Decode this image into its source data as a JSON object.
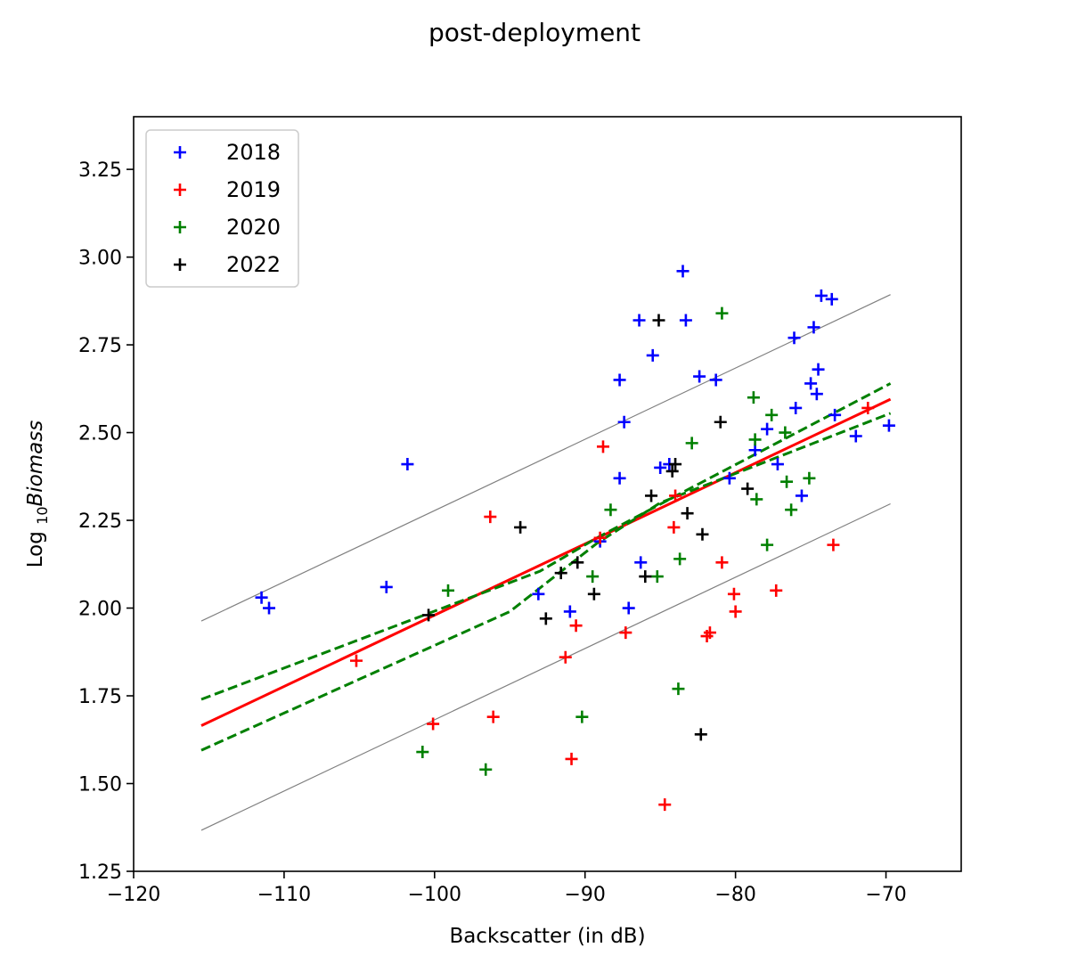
{
  "chart_data": {
    "type": "scatter",
    "title": "post-deployment",
    "xlabel": "Backscatter (in dB)",
    "ylabel": {
      "prefix": "Log ",
      "subscript": "10",
      "italic": "Biomass"
    },
    "xlim": [
      -120,
      -65
    ],
    "ylim": [
      1.25,
      3.4
    ],
    "xticks": [
      -120,
      -110,
      -100,
      -90,
      -80,
      -70
    ],
    "yticks": [
      1.25,
      1.5,
      1.75,
      2.0,
      2.25,
      2.5,
      2.75,
      3.0,
      3.25
    ],
    "grid": false,
    "legend_position": "top-left",
    "series": [
      {
        "name": "2018",
        "color": "#0000ff",
        "marker": "plus",
        "points": [
          [
            -111.5,
            2.03
          ],
          [
            -111.0,
            2.0
          ],
          [
            -103.2,
            2.06
          ],
          [
            -101.8,
            2.41
          ],
          [
            -93.1,
            2.04
          ],
          [
            -91.0,
            1.99
          ],
          [
            -89.0,
            2.19
          ],
          [
            -87.7,
            2.65
          ],
          [
            -87.7,
            2.37
          ],
          [
            -87.4,
            2.53
          ],
          [
            -87.1,
            2.0
          ],
          [
            -86.4,
            2.82
          ],
          [
            -86.3,
            2.13
          ],
          [
            -85.5,
            2.72
          ],
          [
            -85.0,
            2.4
          ],
          [
            -84.4,
            2.41
          ],
          [
            -83.5,
            2.96
          ],
          [
            -83.3,
            2.82
          ],
          [
            -82.4,
            2.66
          ],
          [
            -81.3,
            2.65
          ],
          [
            -80.4,
            2.37
          ],
          [
            -78.7,
            2.45
          ],
          [
            -77.9,
            2.51
          ],
          [
            -77.2,
            2.41
          ],
          [
            -76.1,
            2.77
          ],
          [
            -76.0,
            2.57
          ],
          [
            -75.6,
            2.32
          ],
          [
            -75.0,
            2.64
          ],
          [
            -74.8,
            2.8
          ],
          [
            -74.6,
            2.61
          ],
          [
            -74.5,
            2.68
          ],
          [
            -74.3,
            2.89
          ],
          [
            -73.6,
            2.88
          ],
          [
            -73.4,
            2.55
          ],
          [
            -72.0,
            2.49
          ],
          [
            -69.8,
            2.52
          ]
        ]
      },
      {
        "name": "2019",
        "color": "#ff0000",
        "marker": "plus",
        "points": [
          [
            -105.2,
            1.85
          ],
          [
            -100.1,
            1.67
          ],
          [
            -96.3,
            2.26
          ],
          [
            -96.1,
            1.69
          ],
          [
            -91.3,
            1.86
          ],
          [
            -90.9,
            1.57
          ],
          [
            -90.6,
            1.95
          ],
          [
            -89.0,
            2.2
          ],
          [
            -88.8,
            2.46
          ],
          [
            -87.3,
            1.93
          ],
          [
            -84.7,
            1.44
          ],
          [
            -84.1,
            2.23
          ],
          [
            -84.0,
            2.32
          ],
          [
            -81.9,
            1.92
          ],
          [
            -81.7,
            1.93
          ],
          [
            -80.9,
            2.13
          ],
          [
            -80.1,
            2.04
          ],
          [
            -80.0,
            1.99
          ],
          [
            -77.3,
            2.05
          ],
          [
            -73.5,
            2.18
          ],
          [
            -71.2,
            2.57
          ]
        ]
      },
      {
        "name": "2020",
        "color": "#008000",
        "marker": "plus",
        "points": [
          [
            -100.8,
            1.59
          ],
          [
            -99.1,
            2.05
          ],
          [
            -96.6,
            1.54
          ],
          [
            -90.2,
            1.69
          ],
          [
            -89.5,
            2.09
          ],
          [
            -88.3,
            2.28
          ],
          [
            -85.2,
            2.09
          ],
          [
            -83.8,
            1.77
          ],
          [
            -83.7,
            2.14
          ],
          [
            -82.9,
            2.47
          ],
          [
            -80.9,
            2.84
          ],
          [
            -78.8,
            2.6
          ],
          [
            -78.7,
            2.48
          ],
          [
            -78.6,
            2.31
          ],
          [
            -77.9,
            2.18
          ],
          [
            -77.6,
            2.55
          ],
          [
            -76.7,
            2.5
          ],
          [
            -76.6,
            2.36
          ],
          [
            -76.3,
            2.28
          ],
          [
            -75.1,
            2.37
          ]
        ]
      },
      {
        "name": "2022",
        "color": "#000000",
        "marker": "plus",
        "points": [
          [
            -100.4,
            1.98
          ],
          [
            -94.3,
            2.23
          ],
          [
            -92.6,
            1.97
          ],
          [
            -91.6,
            2.1
          ],
          [
            -90.5,
            2.13
          ],
          [
            -89.4,
            2.04
          ],
          [
            -86.0,
            2.09
          ],
          [
            -85.6,
            2.32
          ],
          [
            -85.1,
            2.82
          ],
          [
            -84.2,
            2.39
          ],
          [
            -84.0,
            2.41
          ],
          [
            -83.2,
            2.27
          ],
          [
            -82.3,
            1.64
          ],
          [
            -82.2,
            2.21
          ],
          [
            -81.0,
            2.53
          ],
          [
            -79.2,
            2.34
          ]
        ]
      }
    ],
    "lines": [
      {
        "role": "fit",
        "color": "#ff0000",
        "style": "solid",
        "points": [
          [
            -115.5,
            1.665
          ],
          [
            -69.7,
            2.595
          ]
        ]
      },
      {
        "role": "confidence-upper",
        "color": "#008000",
        "style": "dashed",
        "points": [
          [
            -115.5,
            1.74
          ],
          [
            -93.0,
            2.105
          ],
          [
            -89.2,
            2.2
          ],
          [
            -83.5,
            2.33
          ],
          [
            -69.7,
            2.64
          ]
        ]
      },
      {
        "role": "confidence-lower",
        "color": "#008000",
        "style": "dashed",
        "points": [
          [
            -115.5,
            1.595
          ],
          [
            -95.0,
            1.99
          ],
          [
            -89.2,
            2.185
          ],
          [
            -85.0,
            2.3
          ],
          [
            -69.7,
            2.555
          ]
        ]
      },
      {
        "role": "prediction-upper",
        "color": "#808080",
        "style": "thin",
        "points": [
          [
            -115.5,
            1.963
          ],
          [
            -69.7,
            2.893
          ]
        ]
      },
      {
        "role": "prediction-lower",
        "color": "#808080",
        "style": "thin",
        "points": [
          [
            -115.5,
            1.367
          ],
          [
            -69.7,
            2.297
          ]
        ]
      }
    ]
  }
}
